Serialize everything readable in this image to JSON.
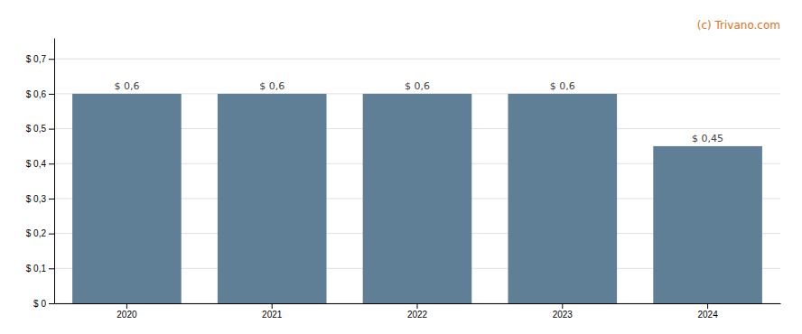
{
  "chart_data": {
    "type": "bar",
    "categories": [
      "2020",
      "2021",
      "2022",
      "2023",
      "2024"
    ],
    "values": [
      0.6,
      0.6,
      0.6,
      0.6,
      0.45
    ],
    "value_labels": [
      "$ 0,6",
      "$ 0,6",
      "$ 0,6",
      "$ 0,6",
      "$ 0,45"
    ],
    "data_labels": true,
    "color": "#5f7f96",
    "ylim": [
      0,
      0.76
    ],
    "yticks": [
      {
        "value": 0,
        "label": "$ 0"
      },
      {
        "value": 0.1,
        "label": "$ 0,1"
      },
      {
        "value": 0.2,
        "label": "$ 0,2"
      },
      {
        "value": 0.3,
        "label": "$ 0,3"
      },
      {
        "value": 0.4,
        "label": "$ 0,4"
      },
      {
        "value": 0.5,
        "label": "$ 0,5"
      },
      {
        "value": 0.6,
        "label": "$ 0,6"
      },
      {
        "value": 0.7,
        "label": "$ 0,7"
      }
    ],
    "grid": true,
    "annotations": [
      {
        "text": "(c) Trivano.com",
        "color": "#e07020"
      }
    ]
  }
}
